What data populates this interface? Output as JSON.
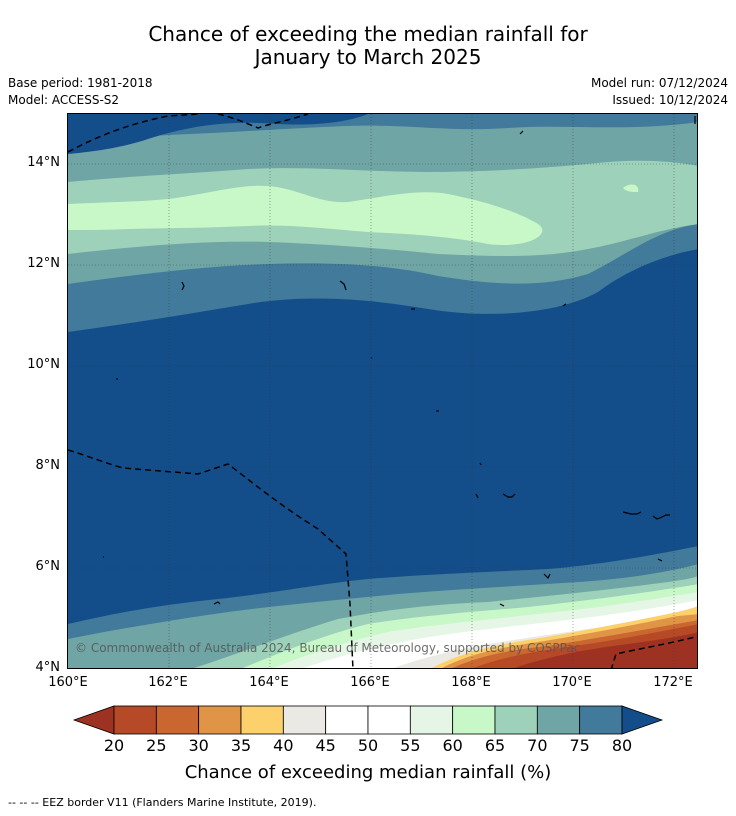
{
  "title_line1": "Chance of exceeding the median rainfall for",
  "title_line2": "January to March 2025",
  "base_period": "Base period: 1981-2018",
  "model": "Model: ACCESS-S2",
  "model_run": "Model run: 07/12/2024",
  "issued": "Issued: 10/12/2024",
  "copyright": "© Commonwealth of Australia 2024, Bureau of Meteorology, supported by COSPPac",
  "lat_labels": [
    "14°N",
    "12°N",
    "10°N",
    "8°N",
    "6°N",
    "4°N"
  ],
  "lon_labels": [
    "160°E",
    "162°E",
    "164°E",
    "166°E",
    "168°E",
    "170°E",
    "172°E"
  ],
  "colorbar": {
    "title": "Chance of exceeding median rainfall (%)",
    "ticks": [
      "20",
      "25",
      "30",
      "35",
      "40",
      "45",
      "50",
      "55",
      "60",
      "65",
      "70",
      "75",
      "80"
    ],
    "colors": [
      "#9e3222",
      "#b64a26",
      "#ca6630",
      "#e09546",
      "#fcd06b",
      "#ebe9e4",
      "#ffffff",
      "#ffffff",
      "#e6f6e6",
      "#c8f8c8",
      "#9dd1b9",
      "#6fa5a5",
      "#417a9a",
      "#144e8a"
    ]
  },
  "footnote": "-- -- -- EEZ border V11 (Flanders Marine Institute, 2019)."
}
